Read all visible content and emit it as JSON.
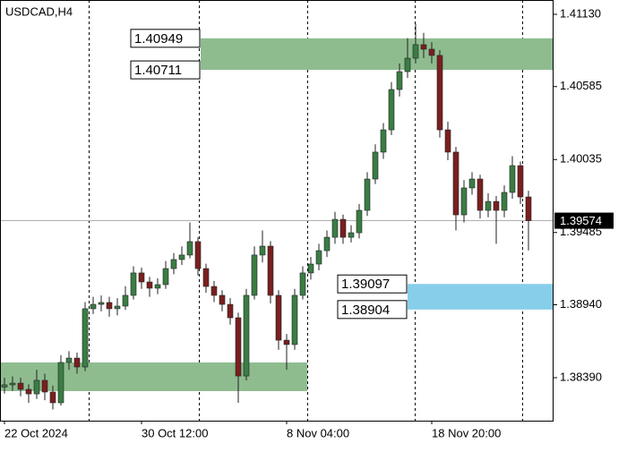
{
  "chart_data": {
    "type": "candlestick",
    "title": "USDCAD,H4",
    "categories": [
      "22 Oct 2024",
      null,
      null,
      null,
      null,
      null,
      null,
      null,
      null,
      null,
      null,
      null,
      null,
      null,
      null,
      null,
      null,
      "30 Oct 12:00",
      null,
      null,
      null,
      null,
      null,
      null,
      null,
      null,
      null,
      null,
      null,
      null,
      null,
      null,
      null,
      null,
      null,
      "8 Nov 04:00",
      null,
      null,
      null,
      null,
      null,
      null,
      null,
      null,
      null,
      null,
      null,
      null,
      null,
      null,
      null,
      null,
      null,
      "18 Nov 20:00",
      null,
      null,
      null,
      null,
      null,
      null,
      null,
      null,
      null,
      null,
      null,
      null
    ],
    "open": [
      1.3832,
      1.38336,
      1.38349,
      1.38302,
      1.38268,
      1.3837,
      1.38282,
      1.38201,
      1.38505,
      1.38538,
      1.38471,
      1.3891,
      1.38943,
      1.38957,
      1.3891,
      1.3893,
      1.39011,
      1.3918,
      1.39112,
      1.39065,
      1.39092,
      1.39213,
      1.39281,
      1.39315,
      1.39416,
      1.39213,
      1.39078,
      1.39011,
      1.38943,
      1.38842,
      1.38403,
      1.39011,
      1.39315,
      1.39382,
      1.39011,
      1.38673,
      1.3864,
      1.39011,
      1.3918,
      1.39247,
      1.39348,
      1.39449,
      1.39584,
      1.39449,
      1.39483,
      1.39652,
      1.39888,
      1.40091,
      1.40259,
      1.40563,
      1.40698,
      1.40799,
      1.40901,
      1.40867,
      1.4082,
      1.40259,
      1.40091,
      1.39618,
      1.39821,
      1.39888,
      1.39652,
      1.39719,
      1.39652,
      1.39787,
      1.39989,
      1.39753
    ],
    "high": [
      1.3839,
      1.384,
      1.3839,
      1.3834,
      1.3845,
      1.3842,
      1.3833,
      1.3856,
      1.3859,
      1.3858,
      1.3896,
      1.39,
      1.3901,
      1.39,
      1.3899,
      1.3908,
      1.3923,
      1.3922,
      1.3915,
      1.3914,
      1.3927,
      1.3933,
      1.3938,
      1.3956,
      1.3945,
      1.3925,
      1.3912,
      1.3905,
      1.3899,
      1.3888,
      1.3906,
      1.3938,
      1.395,
      1.3942,
      1.3905,
      1.3872,
      1.3906,
      1.3923,
      1.393,
      1.394,
      1.395,
      1.3964,
      1.3962,
      1.3954,
      1.397,
      1.3994,
      1.4015,
      1.4031,
      1.4062,
      1.4076,
      1.4095,
      1.4106,
      1.4099,
      1.4092,
      1.4086,
      1.4032,
      1.4013,
      1.3988,
      1.3994,
      1.3992,
      1.3978,
      1.3976,
      1.3984,
      1.4006,
      1.4002,
      1.398
    ],
    "low": [
      1.3827,
      1.3829,
      1.3825,
      1.382,
      1.3823,
      1.3822,
      1.3815,
      1.3818,
      1.3845,
      1.3842,
      1.3844,
      1.3887,
      1.3889,
      1.3885,
      1.3886,
      1.389,
      1.3898,
      1.3906,
      1.39,
      1.3902,
      1.3906,
      1.3917,
      1.3924,
      1.3929,
      1.3916,
      1.3903,
      1.3896,
      1.3889,
      1.3879,
      1.382,
      1.3837,
      1.3898,
      1.3926,
      1.3895,
      1.386,
      1.3845,
      1.386,
      1.3898,
      1.3913,
      1.392,
      1.393,
      1.394,
      1.394,
      1.3941,
      1.3944,
      1.3961,
      1.3985,
      1.4004,
      1.4022,
      1.4051,
      1.4065,
      1.4076,
      1.408,
      1.4076,
      1.402,
      1.4003,
      1.395,
      1.3956,
      1.3977,
      1.3959,
      1.396,
      1.394,
      1.396,
      1.3974,
      1.397,
      1.3935
    ],
    "close": [
      1.38336,
      1.38349,
      1.38302,
      1.38268,
      1.3837,
      1.38282,
      1.38201,
      1.38505,
      1.38538,
      1.38471,
      1.3891,
      1.38943,
      1.38957,
      1.3891,
      1.3893,
      1.39011,
      1.3918,
      1.39112,
      1.39065,
      1.39092,
      1.39213,
      1.39281,
      1.39315,
      1.39416,
      1.39213,
      1.39078,
      1.39011,
      1.38943,
      1.38842,
      1.38403,
      1.39011,
      1.39315,
      1.39382,
      1.39011,
      1.38673,
      1.3864,
      1.39011,
      1.3918,
      1.39247,
      1.39348,
      1.39449,
      1.39584,
      1.39449,
      1.39483,
      1.39652,
      1.39888,
      1.40091,
      1.40259,
      1.40563,
      1.40698,
      1.40799,
      1.40901,
      1.40867,
      1.4082,
      1.40259,
      1.40091,
      1.39618,
      1.39821,
      1.39888,
      1.39652,
      1.39719,
      1.39652,
      1.39787,
      1.39989,
      1.39753,
      1.39574
    ],
    "bull_color": "#3a7d44",
    "bear_color": "#7a1f1f",
    "ylim": [
      1.38066,
      1.41238
    ],
    "yticks": [
      {
        "value": 1.4113,
        "label": "1.41130"
      },
      1.40585,
      1.40035,
      1.39485,
      {
        "value": 1.3894,
        "label": "1.38940"
      },
      {
        "value": 1.3839,
        "label": "1.38390"
      }
    ],
    "last_price": 1.39574,
    "zones": [
      {
        "upper": 1.40949,
        "lower": 1.40711,
        "color": "#8fbc8f",
        "labeled": true
      },
      {
        "upper": 1.38505,
        "lower": 1.38289,
        "color": "#8fbc8f",
        "labeled": false
      },
      {
        "upper": 1.39097,
        "lower": 1.38904,
        "color": "#87ceeb",
        "labeled": true
      }
    ]
  }
}
